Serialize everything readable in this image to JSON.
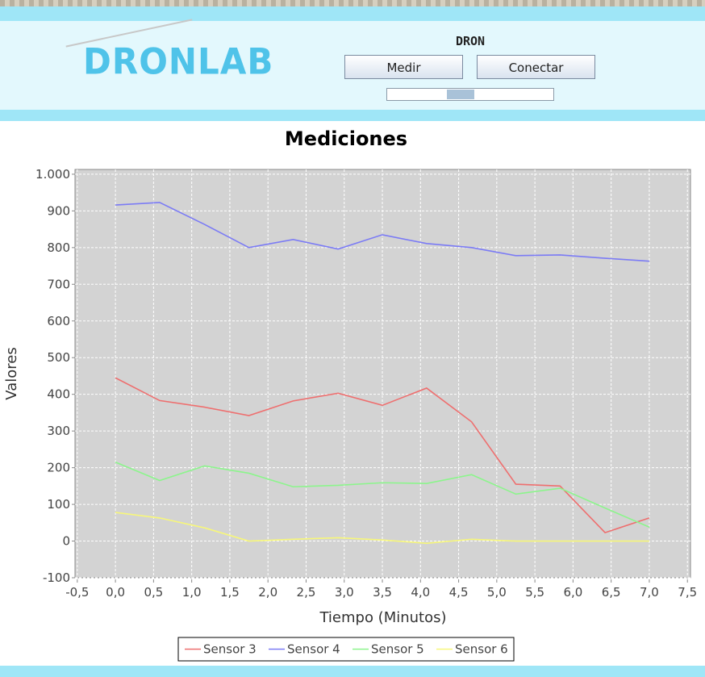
{
  "header": {
    "logo": "DRONLAB",
    "title": "DRON",
    "buttons": [
      "Medir",
      "Conectar"
    ]
  },
  "chart_data": {
    "type": "line",
    "title": "Mediciones",
    "x_label": "Tiempo (Minutos)",
    "y_label": "Valores",
    "x": [
      0,
      0.58,
      1.17,
      1.75,
      2.33,
      2.92,
      3.5,
      4.08,
      4.67,
      5.25,
      5.83,
      6.42,
      7.0
    ],
    "series": [
      {
        "name": "Sensor 3",
        "color": "#ee6f6f",
        "values": [
          445,
          383,
          365,
          342,
          382,
          403,
          370,
          417,
          325,
          155,
          150,
          23,
          63
        ]
      },
      {
        "name": "Sensor 4",
        "color": "#7b7bf5",
        "values": [
          916,
          923,
          863,
          800,
          822,
          796,
          835,
          811,
          800,
          778,
          780,
          771,
          763
        ]
      },
      {
        "name": "Sensor 5",
        "color": "#8cf58c",
        "values": [
          215,
          165,
          205,
          185,
          148,
          152,
          159,
          157,
          181,
          128,
          144,
          90,
          38
        ]
      },
      {
        "name": "Sensor 6",
        "color": "#f7f77a",
        "values": [
          78,
          63,
          36,
          0,
          5,
          9,
          3,
          -6,
          5,
          0,
          0,
          0,
          0
        ]
      }
    ],
    "xlim": [
      -0.53,
      7.54
    ],
    "ylim": [
      -100,
      1013
    ],
    "xticks": [
      {
        "value": -0.5,
        "label": "-0,5"
      },
      {
        "value": 0,
        "label": "0,0"
      },
      {
        "value": 0.5,
        "label": "0,5"
      },
      {
        "value": 1,
        "label": "1,0"
      },
      {
        "value": 1.5,
        "label": "1,5"
      },
      {
        "value": 2,
        "label": "2,0"
      },
      {
        "value": 2.5,
        "label": "2,5"
      },
      {
        "value": 3,
        "label": "3,0"
      },
      {
        "value": 3.5,
        "label": "3,5"
      },
      {
        "value": 4,
        "label": "4,0"
      },
      {
        "value": 4.5,
        "label": "4,5"
      },
      {
        "value": 5,
        "label": "5,0"
      },
      {
        "value": 5.5,
        "label": "5,5"
      },
      {
        "value": 6,
        "label": "6,0"
      },
      {
        "value": 6.5,
        "label": "6,5"
      },
      {
        "value": 7,
        "label": "7,0"
      },
      {
        "value": 7.5,
        "label": "7,5"
      }
    ],
    "yticks": [
      -100,
      0,
      100,
      200,
      300,
      400,
      500,
      600,
      700,
      800,
      900,
      {
        "value": 1000,
        "label": "1.000"
      }
    ],
    "grid": true,
    "legend": "bottom"
  }
}
